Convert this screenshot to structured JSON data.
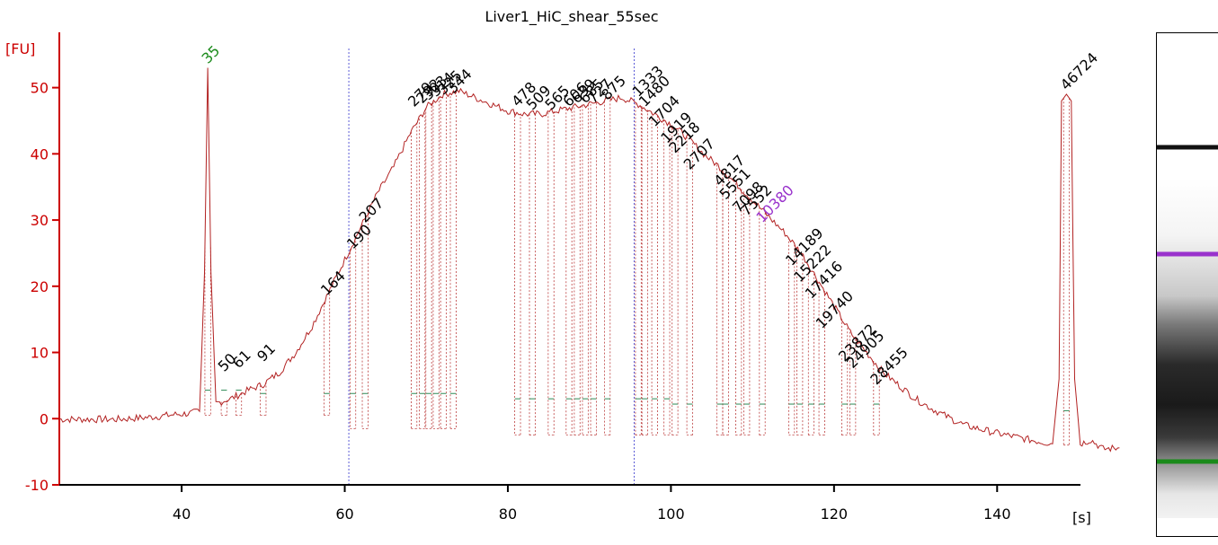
{
  "chart_data": {
    "type": "line",
    "title": "Liver1_HiC_shear_55sec",
    "xlabel": "[s]",
    "ylabel": "[FU]",
    "xlim": [
      25,
      150
    ],
    "ylim": [
      -10,
      57
    ],
    "x_ticks": [
      40,
      60,
      80,
      100,
      120,
      140
    ],
    "y_ticks": [
      -10,
      0,
      10,
      20,
      30,
      40,
      50
    ],
    "colors": {
      "trace": "#b22222",
      "axis": "#cc0000",
      "marker": "#1a8a1a",
      "highlight": "#9932cc",
      "guide": "#3333cc",
      "baseline": "#2e8b57"
    },
    "series": [
      {
        "values": [
          [
            25,
            -0.1
          ],
          [
            28,
            -0.1
          ],
          [
            32,
            -0.1
          ],
          [
            36,
            0.2
          ],
          [
            39,
            0.6
          ],
          [
            41,
            0.8
          ],
          [
            42.2,
            1.1
          ],
          [
            42.8,
            22
          ],
          [
            43.2,
            53
          ],
          [
            43.6,
            22
          ],
          [
            44.2,
            2.3
          ],
          [
            46,
            3
          ],
          [
            48,
            4.2
          ],
          [
            50,
            5.2
          ],
          [
            52,
            7
          ],
          [
            54,
            10
          ],
          [
            56,
            14
          ],
          [
            58,
            19
          ],
          [
            60,
            24
          ],
          [
            62,
            29
          ],
          [
            64,
            34
          ],
          [
            66,
            38
          ],
          [
            68,
            43
          ],
          [
            70,
            47
          ],
          [
            72,
            49
          ],
          [
            74,
            49.5
          ],
          [
            76,
            48.5
          ],
          [
            78,
            47.5
          ],
          [
            80,
            46.5
          ],
          [
            82,
            46
          ],
          [
            84,
            46
          ],
          [
            86,
            46.5
          ],
          [
            88,
            47
          ],
          [
            90,
            47.5
          ],
          [
            92,
            48
          ],
          [
            94,
            48.5
          ],
          [
            96,
            47.5
          ],
          [
            98,
            46
          ],
          [
            100,
            44.5
          ],
          [
            102,
            42.5
          ],
          [
            104,
            40
          ],
          [
            106,
            38
          ],
          [
            108,
            35.5
          ],
          [
            110,
            33
          ],
          [
            112,
            30.5
          ],
          [
            114,
            28
          ],
          [
            116,
            25
          ],
          [
            118,
            21
          ],
          [
            120,
            17
          ],
          [
            122,
            13
          ],
          [
            124,
            10
          ],
          [
            126,
            7
          ],
          [
            128,
            5
          ],
          [
            130,
            3
          ],
          [
            132,
            1.5
          ],
          [
            134,
            0.2
          ],
          [
            136,
            -1
          ],
          [
            140,
            -2.2
          ],
          [
            144,
            -3.2
          ],
          [
            146.8,
            -3.8
          ],
          [
            147.6,
            6
          ],
          [
            147.9,
            48
          ],
          [
            148.5,
            49
          ],
          [
            149.1,
            48
          ],
          [
            149.5,
            6
          ],
          [
            150.2,
            -3.8
          ],
          [
            151.5,
            -3.2
          ],
          [
            153,
            -4.6
          ],
          [
            155,
            -4.4
          ]
        ]
      }
    ],
    "guides_x": [
      60.5,
      95.5
    ],
    "peak_labels": [
      {
        "text": "35",
        "x": 43.2,
        "y": 53.5,
        "color": "marker"
      },
      {
        "text": "50",
        "x": 45.2,
        "y": 7
      },
      {
        "text": "61",
        "x": 47,
        "y": 7.5
      },
      {
        "text": "91",
        "x": 50,
        "y": 8.5
      },
      {
        "text": "164",
        "x": 57.8,
        "y": 18.5
      },
      {
        "text": "190",
        "x": 61,
        "y": 25.5
      },
      {
        "text": "207",
        "x": 62.5,
        "y": 29.5
      },
      {
        "text": "279",
        "x": 68.5,
        "y": 47
      },
      {
        "text": "292",
        "x": 69.5,
        "y": 47.5
      },
      {
        "text": "303",
        "x": 70.3,
        "y": 48
      },
      {
        "text": "314",
        "x": 71.2,
        "y": 48.5
      },
      {
        "text": "325",
        "x": 72.1,
        "y": 48.8
      },
      {
        "text": "344",
        "x": 73.3,
        "y": 49
      },
      {
        "text": "478",
        "x": 81.2,
        "y": 47
      },
      {
        "text": "509",
        "x": 83,
        "y": 46.5
      },
      {
        "text": "565",
        "x": 85.3,
        "y": 46.5
      },
      {
        "text": "606",
        "x": 87.5,
        "y": 47
      },
      {
        "text": "639",
        "x": 88.5,
        "y": 47.5
      },
      {
        "text": "685",
        "x": 89.5,
        "y": 47.5
      },
      {
        "text": "727",
        "x": 90.5,
        "y": 47.5
      },
      {
        "text": "875",
        "x": 92.2,
        "y": 48
      },
      {
        "text": "1333",
        "x": 96,
        "y": 48.5
      },
      {
        "text": "1480",
        "x": 96.8,
        "y": 47
      },
      {
        "text": "1704",
        "x": 98,
        "y": 44
      },
      {
        "text": "1919",
        "x": 99.5,
        "y": 41.5
      },
      {
        "text": "2218",
        "x": 100.5,
        "y": 40
      },
      {
        "text": "2707",
        "x": 102.3,
        "y": 37.5
      },
      {
        "text": "4817",
        "x": 106,
        "y": 35
      },
      {
        "text": "5551",
        "x": 106.7,
        "y": 33
      },
      {
        "text": "7098",
        "x": 108.3,
        "y": 31
      },
      {
        "text": "7552",
        "x": 109.3,
        "y": 30.5
      },
      {
        "text": "10380",
        "x": 111.2,
        "y": 29.5,
        "color": "highlight"
      },
      {
        "text": "14189",
        "x": 114.8,
        "y": 23
      },
      {
        "text": "15222",
        "x": 115.8,
        "y": 20.5
      },
      {
        "text": "17416",
        "x": 117.2,
        "y": 18
      },
      {
        "text": "19740",
        "x": 118.5,
        "y": 13.5
      },
      {
        "text": "23872",
        "x": 121.3,
        "y": 8.5
      },
      {
        "text": "24905",
        "x": 122.3,
        "y": 7.5
      },
      {
        "text": "28455",
        "x": 125.2,
        "y": 5
      },
      {
        "text": "46724",
        "x": 148.5,
        "y": 49.5
      }
    ],
    "gel_bands": [
      {
        "color": "dark",
        "intensity": 1.0
      },
      {
        "color": "highlight",
        "intensity": 1.0
      },
      {
        "color": "marker",
        "intensity": 1.0
      }
    ]
  }
}
